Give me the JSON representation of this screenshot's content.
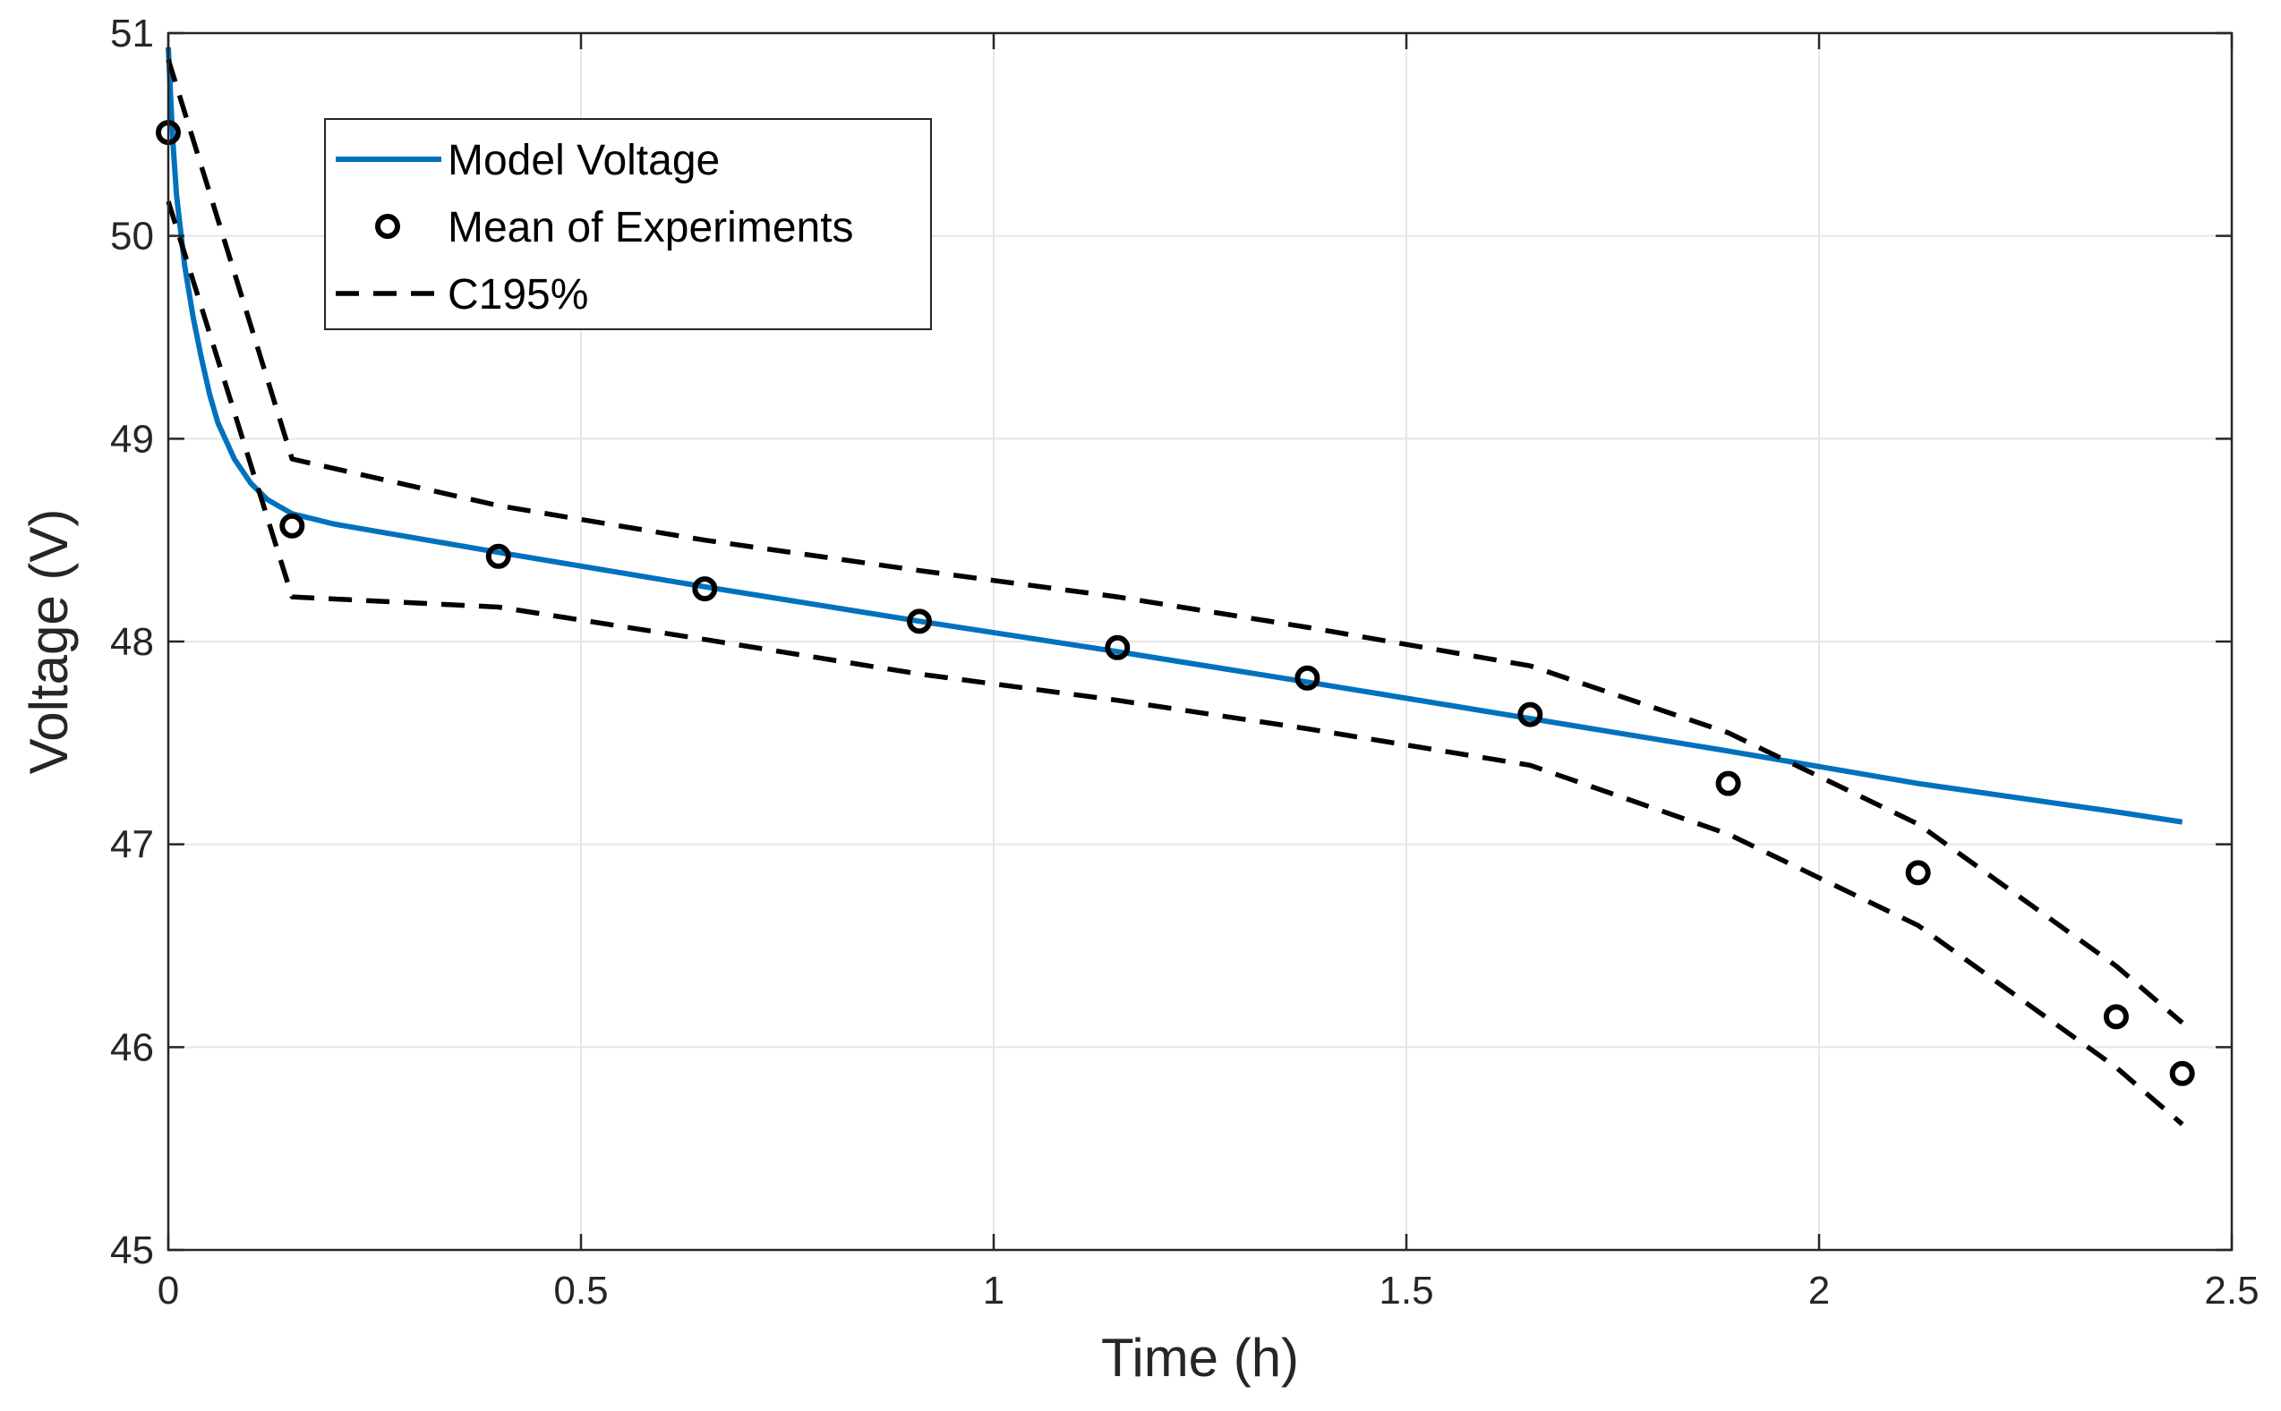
{
  "chart_data": {
    "type": "line",
    "title": "",
    "xlabel": "Time (h)",
    "ylabel": "Voltage (V)",
    "xlim": [
      0,
      2.5
    ],
    "ylim": [
      45,
      51
    ],
    "xticks": [
      0,
      0.5,
      1,
      1.5,
      2,
      2.5
    ],
    "xtick_labels": [
      "0",
      "0.5",
      "1",
      "1.5",
      "2",
      "2.5"
    ],
    "yticks": [
      45,
      46,
      47,
      48,
      49,
      50,
      51
    ],
    "ytick_labels": [
      "45",
      "46",
      "47",
      "48",
      "49",
      "50",
      "51"
    ],
    "grid": true,
    "legend_position": "top-left",
    "series": [
      {
        "name": "Model Voltage",
        "style": "solid",
        "color": "#0072BD",
        "x": [
          0,
          0.005,
          0.01,
          0.02,
          0.03,
          0.04,
          0.05,
          0.06,
          0.08,
          0.1,
          0.12,
          0.15,
          0.2,
          0.3,
          0.4,
          0.65,
          0.91,
          1.15,
          1.38,
          1.65,
          1.89,
          2.12,
          2.36,
          2.44
        ],
        "y": [
          50.93,
          50.5,
          50.2,
          49.85,
          49.6,
          49.4,
          49.22,
          49.08,
          48.9,
          48.78,
          48.7,
          48.63,
          48.58,
          48.51,
          48.44,
          48.27,
          48.1,
          47.95,
          47.8,
          47.62,
          47.46,
          47.3,
          47.16,
          47.11
        ]
      },
      {
        "name": "Mean of Experiments",
        "style": "markers",
        "color": "#000000",
        "x": [
          0,
          0.15,
          0.4,
          0.65,
          0.91,
          1.15,
          1.38,
          1.65,
          1.89,
          2.12,
          2.36,
          2.44
        ],
        "y": [
          50.51,
          48.57,
          48.42,
          48.26,
          48.1,
          47.97,
          47.82,
          47.64,
          47.3,
          46.86,
          46.15,
          45.87
        ]
      },
      {
        "name": "C195%",
        "style": "dashed",
        "color": "#000000",
        "x": [
          0,
          0.15,
          0.4,
          0.65,
          0.91,
          1.15,
          1.38,
          1.65,
          1.89,
          2.12,
          2.36,
          2.44
        ],
        "y": [
          50.87,
          48.9,
          48.67,
          48.5,
          48.35,
          48.22,
          48.07,
          47.88,
          47.55,
          47.1,
          46.4,
          46.12
        ]
      },
      {
        "name": "C195% (lower)",
        "style": "dashed",
        "color": "#000000",
        "show_in_legend": false,
        "x": [
          0,
          0.15,
          0.4,
          0.65,
          0.91,
          1.15,
          1.38,
          1.65,
          1.89,
          2.12,
          2.36,
          2.44
        ],
        "y": [
          50.17,
          48.22,
          48.17,
          48.01,
          47.84,
          47.71,
          47.57,
          47.39,
          47.05,
          46.6,
          45.9,
          45.62
        ]
      }
    ],
    "legend": [
      "Model Voltage",
      "Mean of Experiments",
      "C195%"
    ]
  }
}
